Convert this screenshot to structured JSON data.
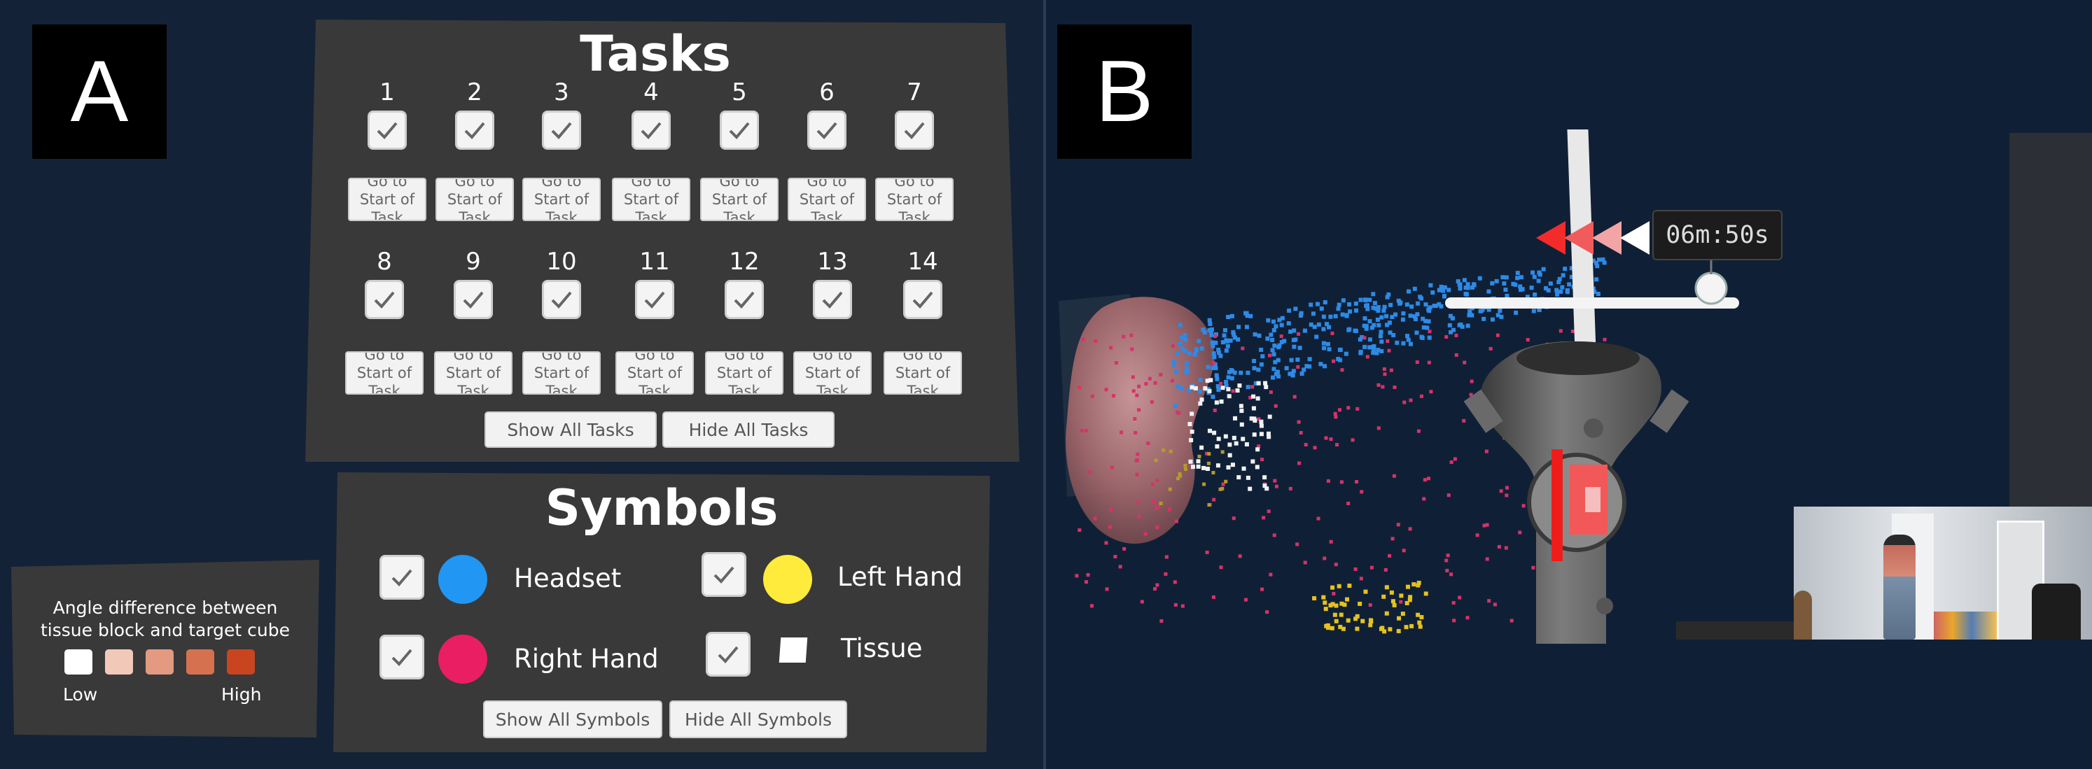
{
  "panel_a": {
    "label": "A",
    "tasks": {
      "title": "Tasks",
      "row1": [
        "1",
        "2",
        "3",
        "4",
        "5",
        "6",
        "7"
      ],
      "row2": [
        "8",
        "9",
        "10",
        "11",
        "12",
        "13",
        "14"
      ],
      "go_label": "Go to Start of Task",
      "show_all": "Show All Tasks",
      "hide_all": "Hide All Tasks"
    },
    "symbols": {
      "title": "Symbols",
      "items": [
        {
          "label": "Headset",
          "color": "#2196F3"
        },
        {
          "label": "Left Hand",
          "color": "#FFEB3B"
        },
        {
          "label": "Right Hand",
          "color": "#E91E63"
        },
        {
          "label": "Tissue",
          "color": "#FFFFFF"
        }
      ],
      "show_all": "Show All Symbols",
      "hide_all": "Hide All Symbols"
    },
    "legend": {
      "title_line1": "Angle difference between",
      "title_line2": "tissue block and target cube",
      "low": "Low",
      "high": "High",
      "swatches": [
        "#FFFFFF",
        "#F2C9B8",
        "#E39A80",
        "#D6714F",
        "#C8451F"
      ]
    }
  },
  "panel_b": {
    "label": "B",
    "timer": "06m:50s",
    "arrow_colors": [
      "#F32B2B",
      "#F05C5C",
      "#F3A5A5",
      "#FFFFFF"
    ]
  }
}
